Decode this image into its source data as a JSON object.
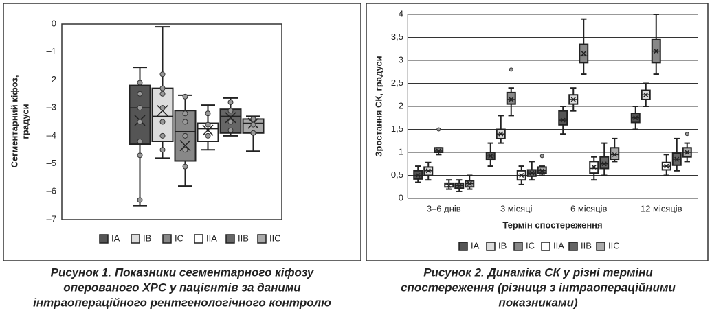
{
  "chart_data": [
    {
      "type": "box",
      "ylabel": [
        "Сегментарний кіфоз,",
        "градуси"
      ],
      "caption": [
        "Рисунок 1. Показники сегментарного кіфозу",
        "оперованого ХРС у пацієнтів за даними",
        "інтраопераційного рентгенологічного контролю"
      ],
      "categories": [
        null
      ],
      "ylim": [
        -7,
        0
      ],
      "yticks": [
        0,
        {
          "value": -1,
          "label": "–1"
        },
        {
          "value": -2,
          "label": "–2"
        },
        {
          "value": -3,
          "label": "–3"
        },
        {
          "value": -4,
          "label": "–4"
        },
        {
          "value": -5,
          "label": "–5"
        },
        {
          "value": -6,
          "label": "–6"
        },
        {
          "value": -7,
          "label": "–7"
        }
      ],
      "grid": false,
      "series": [
        {
          "name": "IA",
          "color": "#555555",
          "min": [
            -6.5
          ],
          "q1": [
            -4.3
          ],
          "median": [
            -3.0
          ],
          "q3": [
            -2.2
          ],
          "max": [
            -1.55
          ],
          "mean": [
            -3.45
          ],
          "points": [
            [
              -2.1,
              -2.5,
              -3.0,
              -3.5,
              -4.2,
              -4.7,
              -6.3
            ]
          ]
        },
        {
          "name": "IB",
          "color": "#dddddd",
          "min": [
            -4.8
          ],
          "q1": [
            -4.2
          ],
          "median": [
            -3.3
          ],
          "q3": [
            -2.3
          ],
          "max": [
            -0.1
          ],
          "mean": [
            -3.1
          ],
          "points": [
            [
              -1.8,
              -2.3,
              -2.5,
              -3.0,
              -3.5,
              -4.0,
              -4.5
            ]
          ]
        },
        {
          "name": "IC",
          "color": "#888888",
          "min": [
            -5.8
          ],
          "q1": [
            -4.9
          ],
          "median": [
            -3.85
          ],
          "q3": [
            -3.1
          ],
          "max": [
            -2.55
          ],
          "mean": [
            -4.35
          ],
          "points": [
            [
              -2.6,
              -3.2,
              -3.5,
              -4.0,
              -4.5,
              -5.1
            ]
          ]
        },
        {
          "name": "IIA",
          "color": "#ffffff",
          "min": [
            -4.5
          ],
          "q1": [
            -4.2
          ],
          "median": [
            -3.75
          ],
          "q3": [
            -3.55
          ],
          "max": [
            -2.9
          ],
          "mean": [
            -3.8
          ],
          "points": [
            [
              -3.2,
              -3.6,
              -4.0
            ]
          ]
        },
        {
          "name": "IIB",
          "color": "#666666",
          "min": [
            -4.0
          ],
          "q1": [
            -3.9
          ],
          "median": [
            -3.3
          ],
          "q3": [
            -3.05
          ],
          "max": [
            -2.65
          ],
          "mean": [
            -3.35
          ],
          "points": [
            [
              -2.8,
              -3.1,
              -3.5,
              -3.8
            ]
          ]
        },
        {
          "name": "IIC",
          "color": "#aaaaaa",
          "min": [
            -4.55
          ],
          "q1": [
            -3.9
          ],
          "median": [
            -3.55
          ],
          "q3": [
            -3.4
          ],
          "max": [
            -3.3
          ],
          "mean": [
            -3.55
          ],
          "points": [
            [
              -3.4,
              -3.6,
              -3.9
            ]
          ]
        }
      ]
    },
    {
      "type": "box",
      "ylabel": [
        "Зростання СК, градуси"
      ],
      "xlabel": "Термін спостереження",
      "caption": [
        "Рисунок 2. Динаміка СК у різні терміни",
        "спостереження (різниця з інтраопераційними",
        "показниками)"
      ],
      "categories": [
        "3–6 днів",
        "3 місяці",
        "6 місяців",
        "12 місяців"
      ],
      "ylim": [
        0,
        4
      ],
      "yticks": [
        0,
        {
          "value": 0.5,
          "label": "0,5"
        },
        1,
        {
          "value": 1.5,
          "label": "1,5"
        },
        2,
        {
          "value": 2.5,
          "label": "2,5"
        },
        3,
        {
          "value": 3.5,
          "label": "3,5"
        },
        4
      ],
      "grid": true,
      "series": [
        {
          "name": "IA",
          "color": "#555555",
          "min": [
            0.35,
            0.7,
            1.4,
            1.5
          ],
          "q1": [
            0.42,
            0.85,
            1.6,
            1.65
          ],
          "median": [
            0.5,
            0.92,
            1.7,
            1.75
          ],
          "q3": [
            0.6,
            1.0,
            1.9,
            1.85
          ],
          "max": [
            0.7,
            1.2,
            2.0,
            2.0
          ],
          "mean": [
            0.5,
            0.92,
            1.7,
            1.75
          ],
          "points": [
            [],
            [],
            [],
            []
          ]
        },
        {
          "name": "IB",
          "color": "#dddddd",
          "min": [
            0.4,
            1.2,
            1.9,
            2.0
          ],
          "q1": [
            0.5,
            1.3,
            2.05,
            2.15
          ],
          "median": [
            0.6,
            1.4,
            2.15,
            2.25
          ],
          "q3": [
            0.68,
            1.5,
            2.25,
            2.35
          ],
          "max": [
            0.78,
            1.8,
            2.4,
            2.5
          ],
          "mean": [
            0.6,
            1.4,
            2.15,
            2.25
          ],
          "points": [
            [],
            [],
            [],
            []
          ]
        },
        {
          "name": "IC",
          "color": "#888888",
          "min": [
            0.95,
            1.8,
            2.7,
            2.7
          ],
          "q1": [
            1.0,
            2.05,
            2.95,
            2.95
          ],
          "median": [
            1.03,
            2.15,
            3.1,
            3.2
          ],
          "q3": [
            1.1,
            2.3,
            3.35,
            3.45
          ],
          "max": [
            1.1,
            2.4,
            3.9,
            4.0
          ],
          "mean": [
            1.03,
            2.15,
            3.15,
            3.2
          ],
          "points": [
            [
              1.5
            ],
            [
              2.8
            ],
            [],
            []
          ]
        },
        {
          "name": "IIA",
          "color": "#ffffff",
          "min": [
            0.2,
            0.3,
            0.4,
            0.5
          ],
          "q1": [
            0.25,
            0.4,
            0.55,
            0.62
          ],
          "median": [
            0.3,
            0.5,
            0.65,
            0.7
          ],
          "q3": [
            0.33,
            0.6,
            0.8,
            0.78
          ],
          "max": [
            0.4,
            0.7,
            0.9,
            0.95
          ],
          "mean": [
            0.28,
            0.5,
            0.68,
            0.7
          ],
          "points": [
            [],
            [],
            [],
            []
          ]
        },
        {
          "name": "IIB",
          "color": "#666666",
          "min": [
            0.15,
            0.4,
            0.5,
            0.6
          ],
          "q1": [
            0.22,
            0.48,
            0.65,
            0.72
          ],
          "median": [
            0.28,
            0.55,
            0.75,
            0.85
          ],
          "q3": [
            0.33,
            0.62,
            0.9,
            0.98
          ],
          "max": [
            0.4,
            0.8,
            1.2,
            1.3
          ],
          "mean": [
            0.28,
            0.55,
            0.75,
            0.85
          ],
          "points": [
            [],
            [],
            [],
            []
          ]
        },
        {
          "name": "IIC",
          "color": "#aaaaaa",
          "min": [
            0.2,
            0.5,
            0.8,
            0.8
          ],
          "q1": [
            0.25,
            0.55,
            0.85,
            0.9
          ],
          "median": [
            0.32,
            0.6,
            0.95,
            1.0
          ],
          "q3": [
            0.38,
            0.68,
            1.1,
            1.1
          ],
          "max": [
            0.5,
            0.7,
            1.3,
            1.2
          ],
          "mean": [
            0.32,
            0.6,
            0.95,
            1.0
          ],
          "points": [
            [],
            [
              0.92
            ],
            [],
            [
              1.4
            ]
          ]
        }
      ]
    }
  ]
}
